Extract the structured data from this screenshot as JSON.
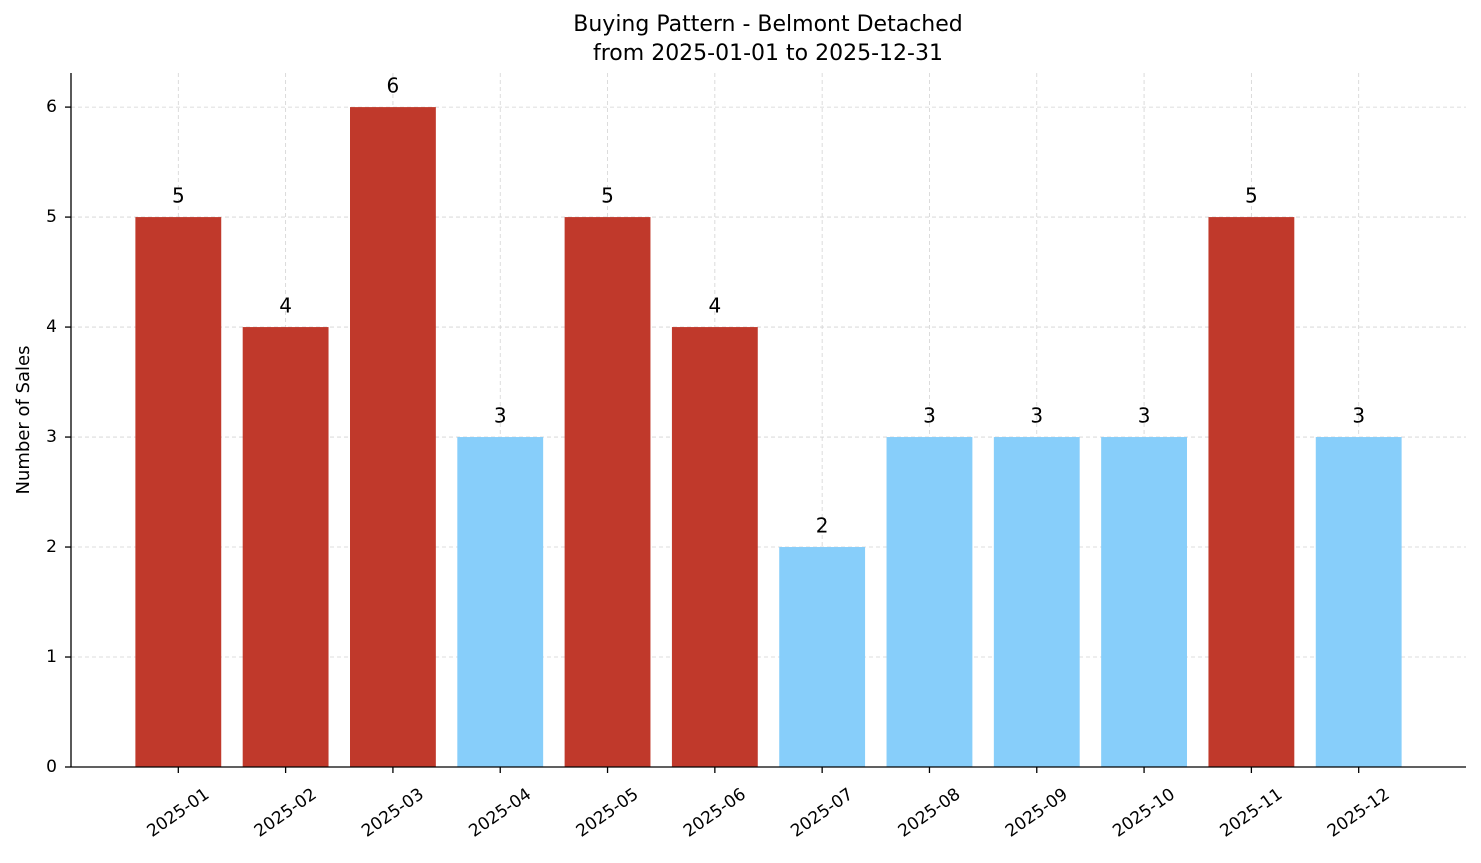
{
  "chart_data": {
    "type": "bar",
    "title": "Buying Pattern - Belmont Detached",
    "subtitle": "from 2025-01-01 to 2025-12-31",
    "y_label": "Number of Sales",
    "categories": [
      "2025-01",
      "2025-02",
      "2025-03",
      "2025-04",
      "2025-05",
      "2025-06",
      "2025-07",
      "2025-08",
      "2025-09",
      "2025-10",
      "2025-11",
      "2025-12"
    ],
    "values": [
      5,
      4,
      6,
      3,
      5,
      4,
      2,
      3,
      3,
      3,
      5,
      3
    ],
    "colors": [
      "#c0392b",
      "#c0392b",
      "#c0392b",
      "#87cefa",
      "#c0392b",
      "#c0392b",
      "#87cefa",
      "#87cefa",
      "#87cefa",
      "#87cefa",
      "#c0392b",
      "#87cefa"
    ],
    "ylim": [
      0,
      6.31
    ],
    "yticks": [
      0,
      1,
      2,
      3,
      4,
      5,
      6
    ],
    "grid": true
  }
}
